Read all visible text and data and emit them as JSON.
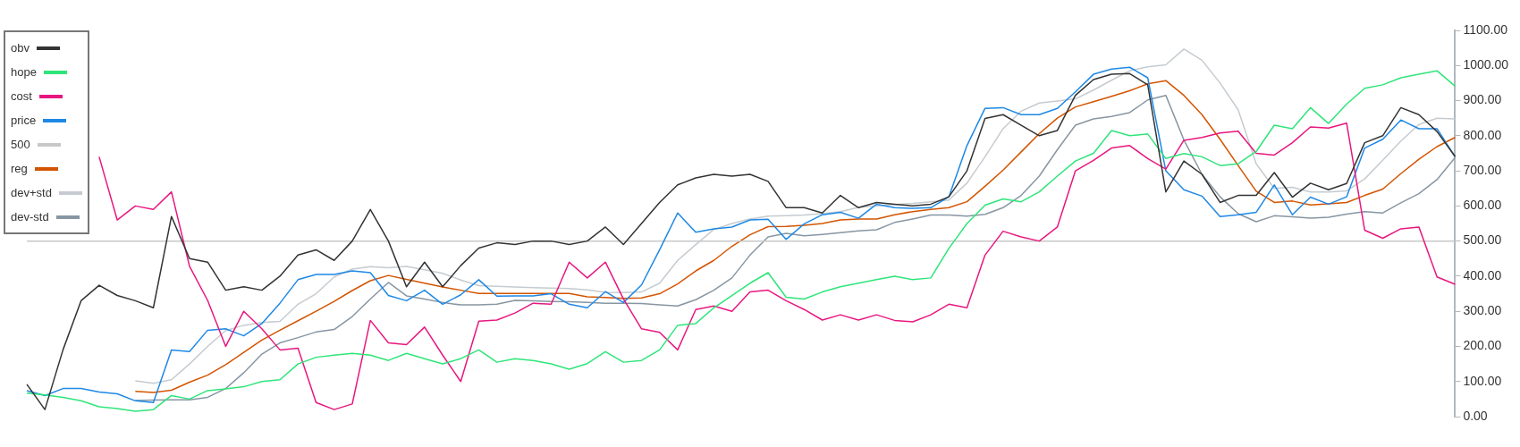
{
  "chart_data": {
    "type": "line",
    "categories": [
      null,
      null,
      null,
      null,
      null,
      null,
      null,
      null,
      null,
      null,
      null,
      null,
      null,
      null,
      null,
      null,
      null,
      null,
      null,
      null,
      null,
      null,
      null,
      null,
      null,
      null,
      null,
      null,
      null,
      null,
      null,
      null,
      null,
      null,
      null,
      null,
      null,
      null,
      null,
      null,
      null,
      null,
      null,
      null,
      null,
      null,
      null,
      null,
      null,
      null,
      null,
      null,
      null,
      null,
      null,
      null,
      null,
      null,
      null,
      null,
      null,
      null,
      null,
      null,
      null,
      null,
      null,
      null,
      null,
      null,
      null,
      null,
      null,
      null,
      null,
      null,
      null,
      null,
      null,
      null
    ],
    "series": [
      {
        "name": "obv",
        "color": "#333333",
        "values": [
          92,
          20,
          190,
          330,
          374,
          345,
          330,
          310,
          570,
          450,
          440,
          360,
          370,
          360,
          400,
          460,
          475,
          445,
          500,
          590,
          500,
          370,
          440,
          370,
          430,
          480,
          495,
          490,
          500,
          500,
          490,
          500,
          540,
          490,
          550,
          610,
          660,
          680,
          690,
          685,
          690,
          670,
          595,
          595,
          580,
          630,
          595,
          610,
          605,
          600,
          605,
          626,
          700,
          849,
          860,
          830,
          800,
          815,
          915,
          960,
          975,
          977,
          945,
          640,
          728,
          690,
          610,
          630,
          630,
          695,
          625,
          665,
          646,
          664,
          780,
          800,
          880,
          860,
          812,
          741
        ]
      },
      {
        "name": "hope",
        "color": "#2ee57a",
        "values": [
          67,
          62,
          55,
          45,
          28,
          23,
          15,
          20,
          60,
          50,
          74,
          79,
          85,
          100,
          105,
          150,
          169,
          175,
          180,
          175,
          160,
          180,
          165,
          150,
          165,
          190,
          155,
          165,
          160,
          150,
          135,
          151,
          185,
          155,
          160,
          190,
          260,
          265,
          310,
          345,
          380,
          410,
          340,
          335,
          355,
          370,
          380,
          390,
          400,
          390,
          395,
          479,
          550,
          602,
          620,
          612,
          640,
          685,
          728,
          750,
          815,
          800,
          805,
          735,
          749,
          740,
          715,
          720,
          755,
          830,
          820,
          880,
          835,
          890,
          935,
          945,
          965,
          975,
          985,
          941
        ]
      },
      {
        "name": "cost",
        "color": "#e8177f",
        "values": [
          null,
          null,
          null,
          null,
          740,
          560,
          600,
          590,
          640,
          428,
          331,
          200,
          300,
          250,
          190,
          195,
          40,
          20,
          36,
          274,
          210,
          205,
          255,
          175,
          100,
          272,
          275,
          295,
          323,
          320,
          440,
          395,
          440,
          335,
          250,
          240,
          190,
          305,
          315,
          300,
          355,
          360,
          330,
          305,
          275,
          290,
          275,
          290,
          274,
          270,
          290,
          320,
          310,
          460,
          528,
          512,
          500,
          540,
          700,
          730,
          765,
          772,
          735,
          705,
          787,
          795,
          808,
          813,
          750,
          745,
          780,
          825,
          822,
          836,
          531,
          508,
          535,
          540,
          398,
          377
        ]
      },
      {
        "name": "price",
        "color": "#1e88e5",
        "values": [
          74,
          60,
          80,
          80,
          70,
          65,
          45,
          40,
          190,
          185,
          246,
          250,
          230,
          265,
          323,
          390,
          405,
          405,
          415,
          410,
          345,
          330,
          360,
          320,
          347,
          390,
          343,
          344,
          344,
          350,
          320,
          310,
          356,
          325,
          375,
          475,
          580,
          525,
          535,
          540,
          560,
          562,
          505,
          549,
          575,
          582,
          565,
          605,
          595,
          593,
          595,
          626,
          772,
          878,
          880,
          860,
          860,
          878,
          925,
          975,
          990,
          995,
          965,
          700,
          646,
          628,
          570,
          575,
          582,
          660,
          575,
          625,
          605,
          626,
          765,
          790,
          845,
          820,
          820,
          740
        ]
      },
      {
        "name": "500",
        "color": "#c8c8c8",
        "values": [
          500,
          500,
          500,
          500,
          500,
          500,
          500,
          500,
          500,
          500,
          500,
          500,
          500,
          500,
          500,
          500,
          500,
          500,
          500,
          500,
          500,
          500,
          500,
          500,
          500,
          500,
          500,
          500,
          500,
          500,
          500,
          500,
          500,
          500,
          500,
          500,
          500,
          500,
          500,
          500,
          500,
          500,
          500,
          500,
          500,
          500,
          500,
          500,
          500,
          500,
          500,
          500,
          500,
          500,
          500,
          500,
          500,
          500,
          500,
          500,
          500,
          500,
          500,
          500,
          500,
          500,
          500,
          500,
          500,
          500,
          500,
          500,
          500,
          500,
          500,
          500,
          500,
          500,
          500,
          500
        ]
      },
      {
        "name": "reg",
        "color": "#d35400",
        "values": [
          null,
          null,
          null,
          null,
          null,
          null,
          72,
          69,
          75,
          98,
          118,
          148,
          183,
          218,
          246,
          273,
          300,
          328,
          359,
          387,
          402,
          391,
          380,
          369,
          360,
          351,
          351,
          351,
          351,
          351,
          351,
          341,
          339,
          337,
          338,
          350,
          378,
          415,
          445,
          485,
          518,
          541,
          542,
          545,
          550,
          560,
          563,
          563,
          575,
          584,
          590,
          595,
          612,
          656,
          702,
          754,
          806,
          850,
          882,
          897,
          912,
          928,
          948,
          957,
          915,
          860,
          790,
          715,
          642,
          610,
          614,
          603,
          606,
          610,
          630,
          648,
          692,
          733,
          769,
          795
        ]
      },
      {
        "name": "dev+std",
        "color": "#c5cbd0",
        "values": [
          null,
          null,
          null,
          null,
          null,
          null,
          102,
          95,
          105,
          150,
          200,
          245,
          260,
          268,
          271,
          320,
          350,
          398,
          420,
          427,
          424,
          428,
          418,
          408,
          389,
          373,
          371,
          369,
          367,
          366,
          365,
          361,
          354,
          353,
          355,
          380,
          445,
          490,
          533,
          550,
          563,
          571,
          572,
          574,
          578,
          584,
          596,
          600,
          604,
          607,
          612,
          617,
          665,
          740,
          820,
          870,
          893,
          899,
          905,
          930,
          958,
          985,
          996,
          1002,
          1047,
          1015,
          950,
          874,
          720,
          650,
          653,
          640,
          640,
          643,
          677,
          730,
          785,
          832,
          850,
          848
        ]
      },
      {
        "name": "dev-std",
        "color": "#8796a3",
        "values": [
          null,
          null,
          null,
          null,
          null,
          null,
          46,
          47,
          48,
          48,
          55,
          80,
          125,
          178,
          210,
          225,
          241,
          248,
          285,
          335,
          382,
          344,
          335,
          325,
          318,
          318,
          320,
          331,
          330,
          328,
          327,
          325,
          323,
          323,
          322,
          318,
          315,
          333,
          360,
          395,
          460,
          512,
          522,
          515,
          519,
          524,
          529,
          532,
          553,
          563,
          574,
          574,
          571,
          576,
          595,
          630,
          685,
          760,
          830,
          848,
          855,
          866,
          902,
          915,
          788,
          690,
          626,
          578,
          555,
          572,
          569,
          565,
          568,
          577,
          584,
          580,
          609,
          635,
          675,
          738
        ]
      }
    ],
    "ylim": [
      0,
      1100
    ],
    "yticks": [
      {
        "value": 0,
        "label": "0.00"
      },
      {
        "value": 100,
        "label": "100.00"
      },
      {
        "value": 200,
        "label": "200.00"
      },
      {
        "value": 300,
        "label": "300.00"
      },
      {
        "value": 400,
        "label": "400.00"
      },
      {
        "value": 500,
        "label": "500.00"
      },
      {
        "value": 600,
        "label": "600.00"
      },
      {
        "value": 700,
        "label": "700.00"
      },
      {
        "value": 800,
        "label": "800.00"
      },
      {
        "value": 900,
        "label": "900.00"
      },
      {
        "value": 1000,
        "label": "1000.00"
      },
      {
        "value": 1100,
        "label": "1100.00"
      }
    ],
    "tick_labels": "y",
    "legend": "top left"
  }
}
